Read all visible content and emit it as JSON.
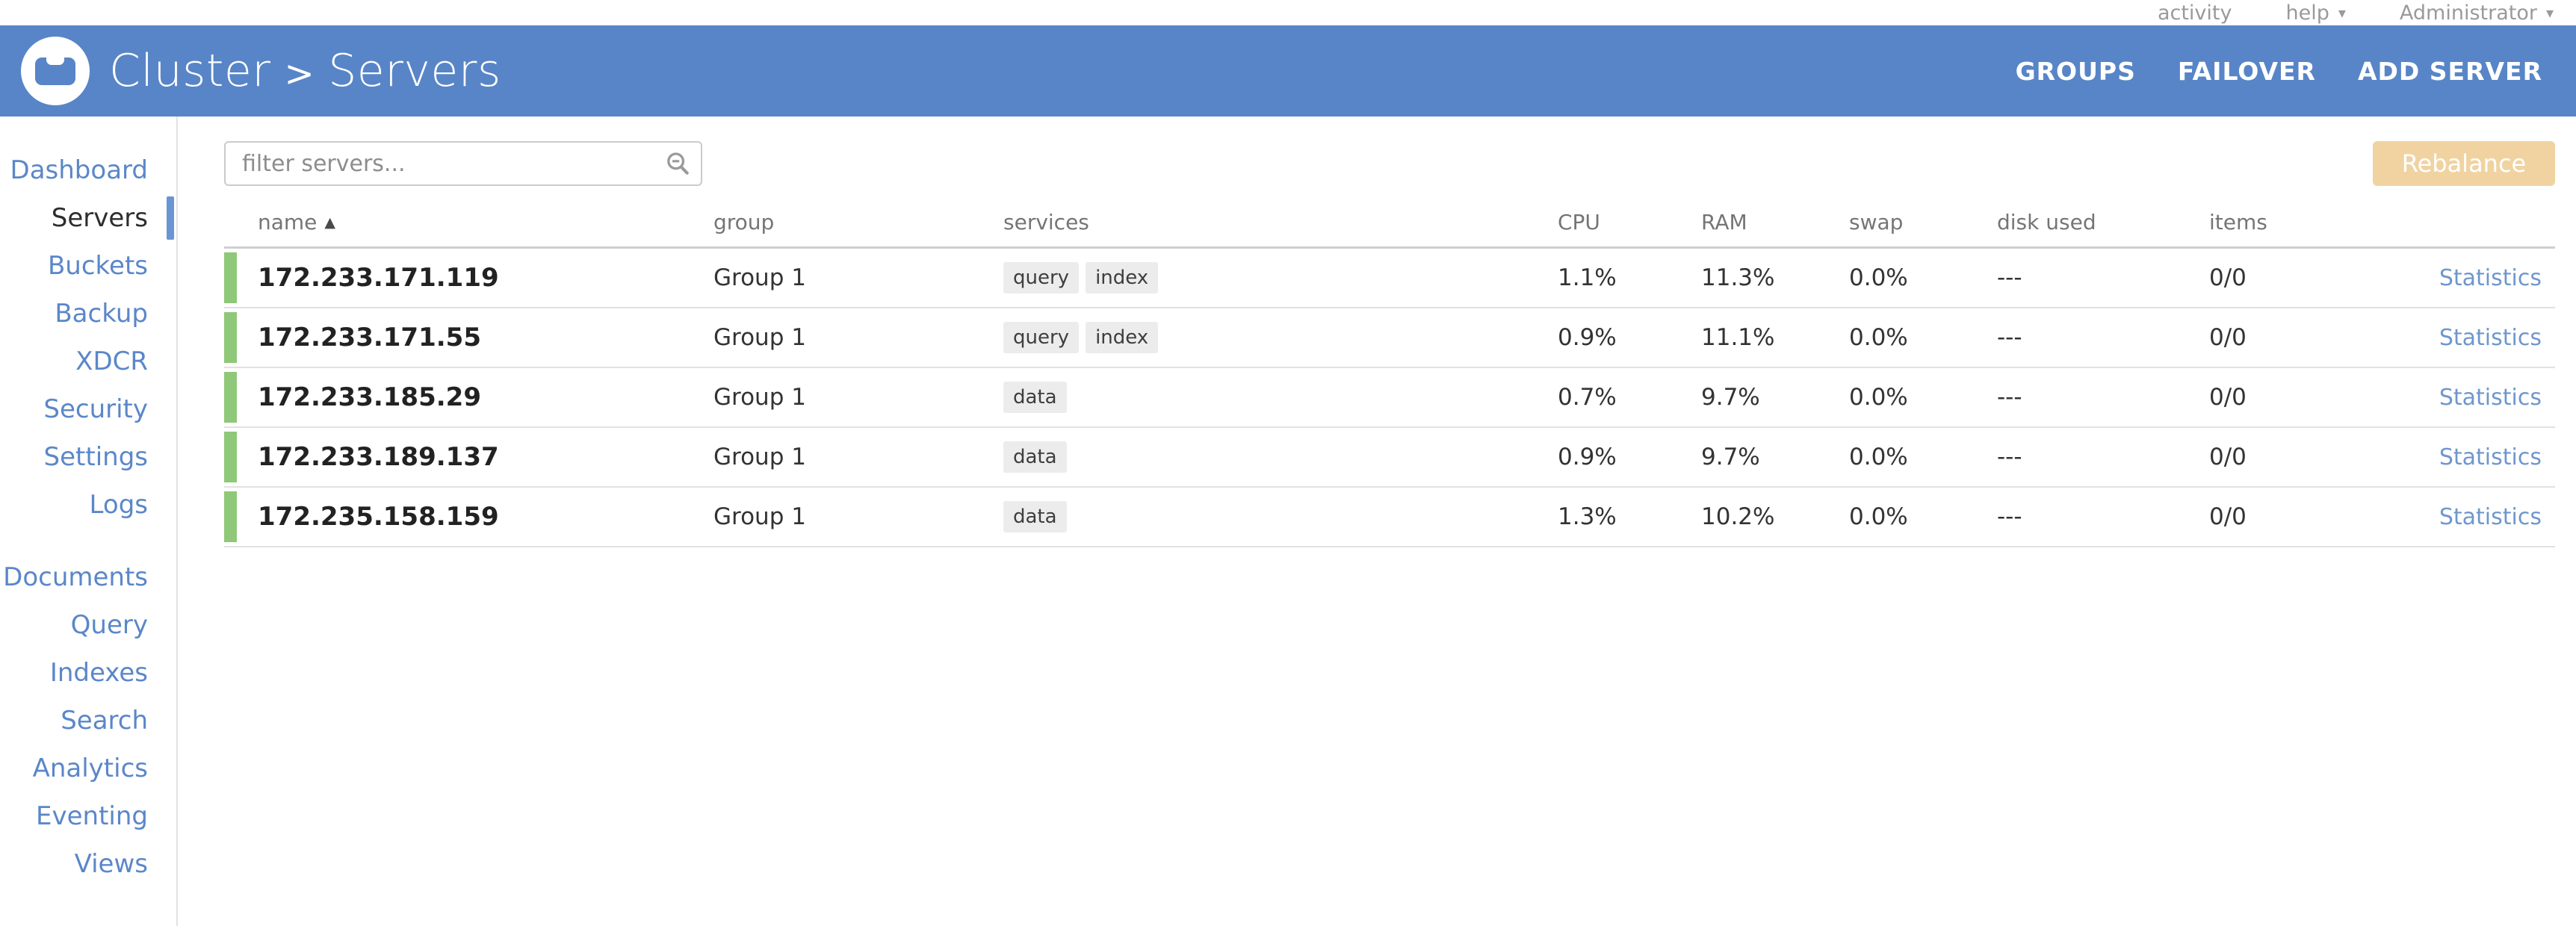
{
  "top_bar": {
    "activity_label": "activity",
    "help_label": "help",
    "user_label": "Administrator",
    "caret": "▾"
  },
  "header": {
    "title_cluster": "Cluster",
    "title_separator": ">",
    "title_section": "Servers",
    "menu": [
      "GROUPS",
      "FAILOVER",
      "ADD SERVER"
    ]
  },
  "sidebar": {
    "active_item": "Servers",
    "primary_items": [
      "Dashboard",
      "Servers",
      "Buckets",
      "Backup",
      "XDCR",
      "Security",
      "Settings",
      "Logs"
    ],
    "secondary_items": [
      "Documents",
      "Query",
      "Indexes",
      "Search",
      "Analytics",
      "Eventing",
      "Views"
    ]
  },
  "toolbar": {
    "filter_placeholder": "filter servers...",
    "rebalance_label": "Rebalance"
  },
  "table": {
    "columns": [
      "name",
      "group",
      "services",
      "CPU",
      "RAM",
      "swap",
      "disk used",
      "items"
    ],
    "sort_column": "name",
    "sort_direction": "asc",
    "sort_arrow": "▲",
    "statistics_label": "Statistics",
    "rows": [
      {
        "name": "172.233.171.119",
        "group": "Group 1",
        "services": [
          "query",
          "index"
        ],
        "cpu": "1.1%",
        "ram": "11.3%",
        "swap": "0.0%",
        "disk_used": "---",
        "items": "0/0",
        "health": "healthy"
      },
      {
        "name": "172.233.171.55",
        "group": "Group 1",
        "services": [
          "query",
          "index"
        ],
        "cpu": "0.9%",
        "ram": "11.1%",
        "swap": "0.0%",
        "disk_used": "---",
        "items": "0/0",
        "health": "healthy"
      },
      {
        "name": "172.233.185.29",
        "group": "Group 1",
        "services": [
          "data"
        ],
        "cpu": "0.7%",
        "ram": "9.7%",
        "swap": "0.0%",
        "disk_used": "---",
        "items": "0/0",
        "health": "healthy"
      },
      {
        "name": "172.233.189.137",
        "group": "Group 1",
        "services": [
          "data"
        ],
        "cpu": "0.9%",
        "ram": "9.7%",
        "swap": "0.0%",
        "disk_used": "---",
        "items": "0/0",
        "health": "healthy"
      },
      {
        "name": "172.235.158.159",
        "group": "Group 1",
        "services": [
          "data"
        ],
        "cpu": "1.3%",
        "ram": "10.2%",
        "swap": "0.0%",
        "disk_used": "---",
        "items": "0/0",
        "health": "healthy"
      }
    ]
  },
  "colors": {
    "header_blue": "#5885c7",
    "link_blue": "#5b87c9",
    "health_green": "#8fc878",
    "rebalance_tan": "#f0d3a1",
    "statistics_link_blue": "#6f97cd"
  }
}
